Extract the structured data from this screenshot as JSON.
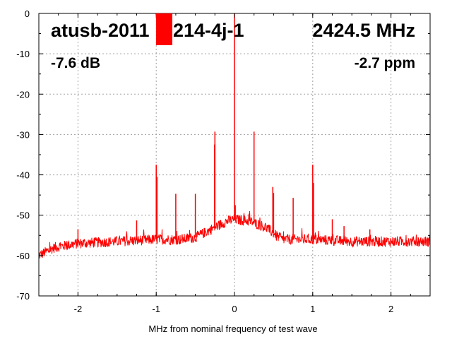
{
  "chart_data": {
    "type": "line",
    "title_left_part1": "atusb-2011",
    "title_left_part2": "214-4j-1",
    "title_right": "2424.5 MHz",
    "sub_left": "-7.6 dB",
    "sub_right": "-2.7 ppm",
    "xlabel": "MHz from nominal frequency of test wave",
    "ylabel": "",
    "xlim": [
      -2.5,
      2.5
    ],
    "ylim": [
      -70,
      0
    ],
    "xticks": [
      -2,
      -1,
      0,
      1,
      2
    ],
    "xtick_labels": [
      "-2",
      "-1",
      "0",
      "1",
      "2"
    ],
    "yticks": [
      0,
      -10,
      -20,
      -30,
      -40,
      -50,
      -60,
      -70
    ],
    "ytick_labels": [
      "0",
      "-10",
      "-20",
      "-30",
      "-40",
      "-50",
      "-60",
      "-70"
    ],
    "grid": true,
    "series_color": "#ff0000",
    "noise_floor": {
      "x": [
        -2.5,
        -2.3,
        -2.0,
        -1.5,
        -1.0,
        -0.7,
        -0.5,
        -0.3,
        -0.1,
        0.0,
        0.2,
        0.4,
        0.5,
        0.6,
        0.8,
        1.0,
        1.5,
        2.0,
        2.5
      ],
      "y": [
        -60,
        -58,
        -57,
        -56.5,
        -56,
        -56,
        -55.5,
        -53.5,
        -51.5,
        -51,
        -51.5,
        -53,
        -54.5,
        -56,
        -56,
        -56,
        -56.5,
        -56.5,
        -56.5
      ]
    },
    "spikes": [
      {
        "x": -2.0,
        "y": -53.5
      },
      {
        "x": -1.25,
        "y": -51.3
      },
      {
        "x": -1.0,
        "y": -37.5
      },
      {
        "x": -0.99,
        "y": -40.5
      },
      {
        "x": -0.75,
        "y": -44.7
      },
      {
        "x": -0.5,
        "y": -44.7
      },
      {
        "x": -0.255,
        "y": -32.5
      },
      {
        "x": -0.25,
        "y": -29.3
      },
      {
        "x": 0.0,
        "y": 0
      },
      {
        "x": 0.01,
        "y": -47.5
      },
      {
        "x": 0.25,
        "y": -29.3
      },
      {
        "x": 0.49,
        "y": -43
      },
      {
        "x": 0.5,
        "y": -44.5
      },
      {
        "x": 0.75,
        "y": -45.7
      },
      {
        "x": 1.0,
        "y": -37.5
      },
      {
        "x": 1.01,
        "y": -42
      },
      {
        "x": 1.25,
        "y": -51
      },
      {
        "x": 1.4,
        "y": -52.7
      },
      {
        "x": 1.73,
        "y": -53.5
      }
    ]
  }
}
